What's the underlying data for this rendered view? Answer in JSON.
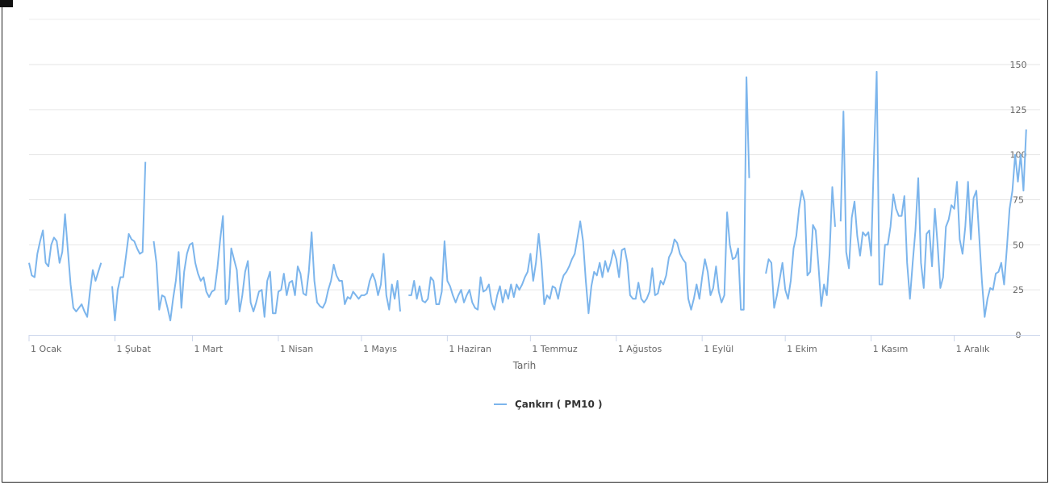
{
  "chart_data": {
    "type": "line",
    "xlabel": "Tarih",
    "ylabel": "",
    "ylim": [
      0,
      150
    ],
    "yticks": [
      0,
      25,
      50,
      75,
      100,
      125,
      150
    ],
    "xticks": [
      "1 Ocak",
      "1 Şubat",
      "1 Mart",
      "1 Nisan",
      "1 Mayıs",
      "1 Haziran",
      "1 Temmuz",
      "1 Ağustos",
      "1 Eylül",
      "1 Ekim",
      "1 Kasım",
      "1 Aralık"
    ],
    "month_days": [
      31,
      28,
      31,
      30,
      31,
      30,
      31,
      31,
      30,
      31,
      30,
      31
    ],
    "grid": true,
    "legend_position": "bottom-center",
    "series": [
      {
        "name": "Çankırı ( PM10 )",
        "color": "#7cb5ec",
        "segments": [
          {
            "start_day": 1,
            "values": [
              40,
              33,
              32,
              45,
              52,
              58,
              40,
              38,
              50,
              54,
              52,
              40,
              46,
              67,
              47,
              28,
              15,
              13,
              15,
              17,
              13,
              10,
              24,
              36,
              30,
              35,
              40
            ]
          },
          {
            "start_day": 31,
            "values": [
              27,
              8,
              25,
              32,
              32,
              44,
              56,
              53,
              52,
              48,
              45,
              46,
              96
            ]
          },
          {
            "start_day": 46,
            "values": [
              52,
              40,
              14,
              22,
              21,
              15,
              8,
              20,
              30,
              46,
              15,
              35,
              45,
              50,
              51,
              40,
              34,
              30,
              32,
              24,
              21,
              24,
              25,
              37,
              53,
              66,
              17,
              20,
              48,
              42,
              36,
              13,
              22,
              35,
              41,
              18,
              13,
              18,
              24,
              25,
              10,
              30,
              35,
              12,
              12,
              24,
              25,
              34,
              22,
              29,
              30,
              22,
              38,
              34,
              23,
              22,
              35,
              57,
              30,
              18,
              16,
              15,
              18,
              25,
              30,
              39,
              33,
              30,
              30,
              17,
              21,
              20,
              24,
              22,
              20,
              22,
              22,
              23,
              30,
              34,
              30,
              22,
              28,
              45,
              22,
              14,
              28,
              20,
              30,
              13
            ]
          },
          {
            "start_day": 138,
            "values": [
              22,
              22,
              30,
              20,
              27,
              19,
              18,
              20,
              32,
              30,
              17,
              17,
              24,
              52,
              30,
              27,
              22,
              18,
              22,
              25,
              18,
              22,
              25,
              18,
              15,
              14,
              32,
              24,
              25,
              28,
              18,
              14,
              22,
              27,
              18,
              25,
              20,
              28,
              21,
              28,
              25,
              28,
              32,
              35,
              45,
              30,
              40,
              56,
              40,
              17,
              22,
              20,
              27,
              26,
              20,
              28,
              33,
              35,
              38,
              42,
              45,
              54,
              63,
              52,
              30,
              12,
              27,
              35,
              33,
              40,
              32,
              41,
              35,
              40,
              47,
              42,
              32,
              47,
              48,
              40,
              22,
              20,
              20,
              29,
              20,
              18,
              20,
              24,
              37,
              22,
              23,
              30,
              28,
              33,
              43,
              46,
              53,
              51,
              45,
              42,
              40,
              20,
              14,
              20,
              28,
              20,
              32,
              42,
              35,
              22,
              26,
              38,
              24,
              18,
              22,
              68,
              50,
              42,
              43,
              48,
              14,
              14,
              143,
              87
            ]
          },
          {
            "start_day": 267,
            "values": [
              34,
              42,
              40,
              15,
              22,
              31,
              40,
              25,
              20,
              30,
              48,
              55,
              70,
              80,
              74,
              33,
              35,
              61,
              58,
              38,
              16,
              28,
              22,
              45,
              82,
              60
            ]
          },
          {
            "start_day": 294,
            "values": [
              63,
              124,
              46,
              37,
              65,
              74,
              55,
              44,
              57,
              55,
              57,
              44,
              97,
              146,
              28,
              28,
              50,
              50,
              60,
              78,
              70,
              66,
              66,
              77,
              40,
              20,
              40,
              58,
              87,
              40,
              26,
              56,
              58,
              38,
              70,
              50,
              26,
              32,
              60,
              64,
              72,
              70,
              85,
              53,
              45,
              60,
              85,
              53,
              76,
              80,
              55,
              30,
              10,
              20,
              26,
              25,
              34,
              35,
              40,
              28,
              48,
              70,
              80,
              100,
              85,
              100,
              80,
              114
            ]
          }
        ]
      }
    ]
  }
}
